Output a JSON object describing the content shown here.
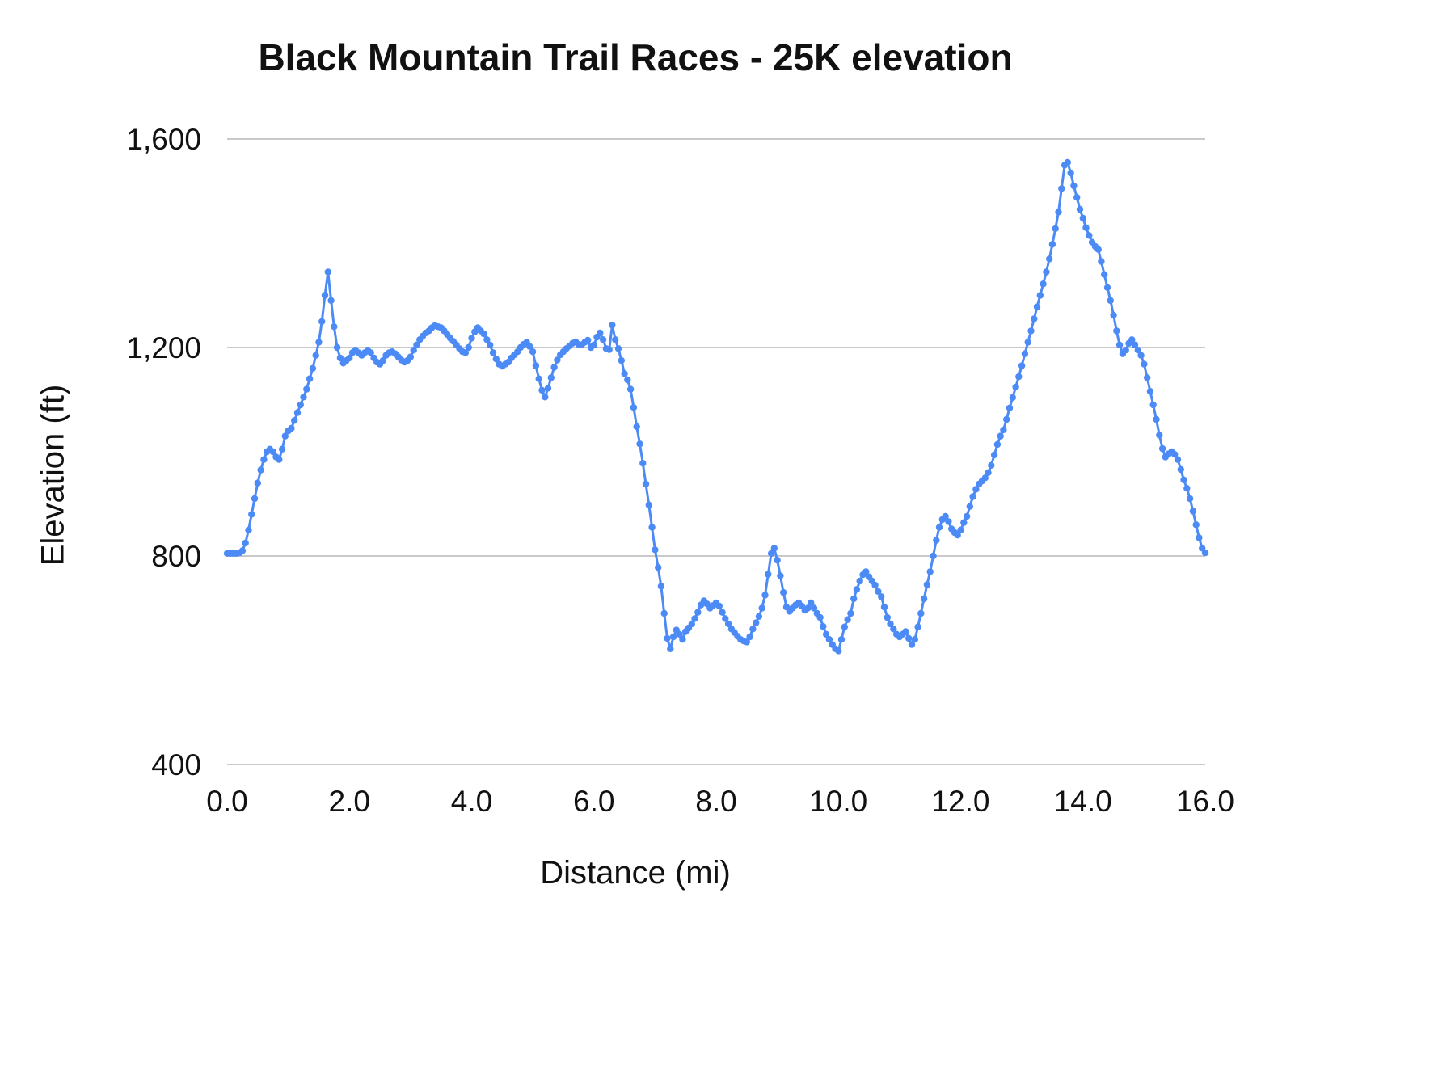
{
  "page": {
    "background": "#ffffff"
  },
  "chart_data": {
    "type": "line",
    "title": "Black Mountain Trail Races - 25K elevation",
    "xlabel": "Distance (mi)",
    "ylabel": "Elevation (ft)",
    "xlim": [
      0,
      16
    ],
    "ylim": [
      400,
      1600
    ],
    "grid": "horizontal",
    "legend": "none",
    "gridline_color": "#c9c9c9",
    "text_color": "#111111",
    "x_ticks": [
      {
        "value": 0,
        "label": "0.0"
      },
      {
        "value": 2,
        "label": "2.0"
      },
      {
        "value": 4,
        "label": "4.0"
      },
      {
        "value": 6,
        "label": "6.0"
      },
      {
        "value": 8,
        "label": "8.0"
      },
      {
        "value": 10,
        "label": "10.0"
      },
      {
        "value": 12,
        "label": "12.0"
      },
      {
        "value": 14,
        "label": "14.0"
      },
      {
        "value": 16,
        "label": "16.0"
      }
    ],
    "y_ticks": [
      {
        "value": 400,
        "label": "400"
      },
      {
        "value": 800,
        "label": "800"
      },
      {
        "value": 1200,
        "label": "1,200"
      },
      {
        "value": 1600,
        "label": "1,600"
      }
    ],
    "series": [
      {
        "name": "25K elevation",
        "color": "#4c8bf5",
        "marker": "circle",
        "point_radius": 4.2,
        "line_width": 3,
        "x_start": 0,
        "x_step": 0.05,
        "elevations_ft": [
          805,
          805,
          805,
          805,
          806,
          810,
          825,
          850,
          880,
          910,
          940,
          965,
          985,
          1000,
          1005,
          1000,
          990,
          985,
          1005,
          1030,
          1040,
          1045,
          1060,
          1075,
          1090,
          1105,
          1120,
          1140,
          1160,
          1185,
          1210,
          1250,
          1300,
          1345,
          1290,
          1240,
          1200,
          1180,
          1170,
          1175,
          1180,
          1190,
          1195,
          1190,
          1185,
          1190,
          1195,
          1190,
          1180,
          1172,
          1168,
          1175,
          1185,
          1190,
          1192,
          1188,
          1182,
          1176,
          1172,
          1175,
          1182,
          1195,
          1205,
          1215,
          1222,
          1228,
          1232,
          1238,
          1242,
          1240,
          1238,
          1232,
          1225,
          1218,
          1212,
          1205,
          1198,
          1192,
          1190,
          1200,
          1218,
          1230,
          1238,
          1232,
          1226,
          1215,
          1205,
          1190,
          1178,
          1168,
          1164,
          1168,
          1172,
          1180,
          1186,
          1192,
          1200,
          1206,
          1210,
          1202,
          1192,
          1165,
          1140,
          1118,
          1105,
          1122,
          1142,
          1162,
          1176,
          1186,
          1192,
          1198,
          1203,
          1208,
          1211,
          1206,
          1205,
          1210,
          1214,
          1200,
          1205,
          1220,
          1228,
          1215,
          1198,
          1196,
          1243,
          1215,
          1198,
          1175,
          1150,
          1138,
          1120,
          1085,
          1048,
          1015,
          978,
          938,
          898,
          855,
          812,
          778,
          742,
          690,
          642,
          622,
          645,
          658,
          650,
          640,
          655,
          662,
          670,
          680,
          692,
          706,
          714,
          708,
          700,
          705,
          710,
          704,
          692,
          680,
          670,
          660,
          653,
          646,
          640,
          637,
          635,
          645,
          660,
          672,
          684,
          700,
          725,
          765,
          805,
          815,
          792,
          762,
          730,
          702,
          694,
          700,
          706,
          710,
          704,
          696,
          700,
          710,
          700,
          690,
          682,
          665,
          650,
          640,
          630,
          622,
          618,
          640,
          664,
          678,
          690,
          718,
          736,
          752,
          764,
          770,
          760,
          752,
          744,
          732,
          722,
          702,
          682,
          670,
          660,
          650,
          645,
          650,
          655,
          642,
          630,
          640,
          664,
          690,
          718,
          745,
          770,
          800,
          830,
          855,
          870,
          876,
          866,
          852,
          845,
          840,
          850,
          864,
          876,
          895,
          914,
          928,
          938,
          944,
          950,
          960,
          974,
          994,
          1014,
          1030,
          1042,
          1062,
          1084,
          1104,
          1124,
          1144,
          1165,
          1188,
          1210,
          1232,
          1255,
          1278,
          1300,
          1322,
          1345,
          1370,
          1398,
          1428,
          1460,
          1505,
          1550,
          1555,
          1535,
          1510,
          1488,
          1465,
          1448,
          1430,
          1415,
          1402,
          1394,
          1388,
          1365,
          1340,
          1315,
          1290,
          1262,
          1232,
          1205,
          1188,
          1195,
          1208,
          1215,
          1205,
          1195,
          1185,
          1168,
          1142,
          1116,
          1090,
          1062,
          1032,
          1006,
          990,
          996,
          1000,
          995,
          985,
          966,
          946,
          930,
          910,
          886,
          860,
          835,
          815,
          806
        ]
      }
    ]
  }
}
